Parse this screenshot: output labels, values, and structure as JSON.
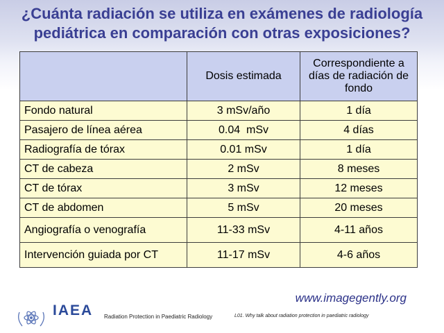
{
  "title": {
    "line1": "¿Cuánta radiación se utiliza en exámenes de radiología",
    "line2": "pediátrica en comparación con otras exposiciones?"
  },
  "table": {
    "headers": [
      "",
      "Dosis estimada",
      "Correspondiente a días de radiación de fondo"
    ],
    "rows": [
      {
        "exposure": "Fondo natural",
        "dose": "3 mSv/año",
        "equivalent": "1 día"
      },
      {
        "exposure": "Pasajero de línea aérea",
        "dose": "0.04  mSv",
        "equivalent": "4 días"
      },
      {
        "exposure": "Radiografía de tórax",
        "dose": "0.01 mSv",
        "equivalent": "1 día"
      },
      {
        "exposure": "CT de cabeza",
        "dose": "2 mSv",
        "equivalent": "8 meses"
      },
      {
        "exposure": "CT de tórax",
        "dose": "3 mSv",
        "equivalent": "12 meses"
      },
      {
        "exposure": "CT de abdomen",
        "dose": "5 mSv",
        "equivalent": "20 meses"
      },
      {
        "exposure": "Angiografía o venografía",
        "dose": "11-33 mSv",
        "equivalent": "4-11 años"
      },
      {
        "exposure": "Intervención guiada por CT",
        "dose": "11-17 mSv",
        "equivalent": "4-6 años"
      }
    ]
  },
  "website": "www.imagegently.org",
  "footer": {
    "org": "IAEA",
    "left": "Radiation Protection in Paediatric Radiology",
    "right": "L01. Why talk about radiation protection in paediatric radiology"
  },
  "colors": {
    "title": "#3a3f93",
    "header_fill": "#c9d0ef",
    "cell_fill": "#fdfbd2"
  }
}
